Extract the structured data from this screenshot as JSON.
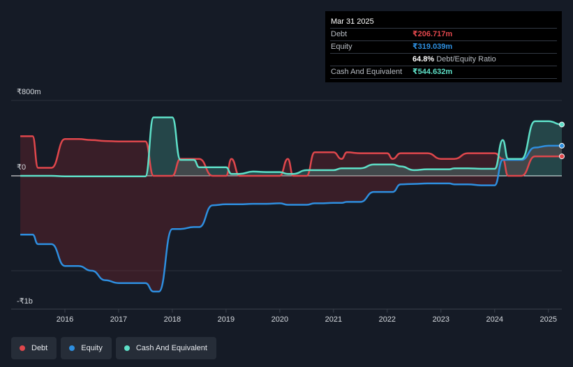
{
  "chart_data": {
    "type": "area",
    "x": [
      2015.17,
      2015.4,
      2015.5,
      2015.75,
      2016.0,
      2016.25,
      2016.5,
      2016.75,
      2017.0,
      2017.25,
      2017.5,
      2017.65,
      2017.75,
      2018.0,
      2018.15,
      2018.4,
      2018.5,
      2018.75,
      2019.0,
      2019.1,
      2019.25,
      2019.5,
      2019.75,
      2020.0,
      2020.15,
      2020.25,
      2020.5,
      2020.65,
      2020.75,
      2021.0,
      2021.15,
      2021.25,
      2021.5,
      2021.75,
      2022.0,
      2022.1,
      2022.25,
      2022.5,
      2022.75,
      2023.0,
      2023.15,
      2023.25,
      2023.5,
      2023.75,
      2024.0,
      2024.15,
      2024.25,
      2024.5,
      2024.75,
      2025.0,
      2025.25
    ],
    "series": [
      {
        "name": "Debt",
        "color": "#e0474c",
        "values": [
          420,
          420,
          85,
          85,
          390,
          390,
          380,
          370,
          365,
          365,
          365,
          0,
          0,
          0,
          180,
          180,
          180,
          0,
          0,
          180,
          0,
          0,
          0,
          0,
          180,
          0,
          0,
          250,
          250,
          250,
          180,
          250,
          240,
          240,
          240,
          180,
          240,
          240,
          240,
          180,
          180,
          180,
          240,
          240,
          240,
          180,
          0,
          0,
          206.7,
          206.7,
          206.7
        ]
      },
      {
        "name": "Equity",
        "color": "#2e8fe0",
        "values": [
          -620,
          -620,
          -720,
          -720,
          -950,
          -950,
          -1000,
          -1100,
          -1130,
          -1130,
          -1130,
          -1220,
          -1220,
          -560,
          -560,
          -540,
          -540,
          -310,
          -300,
          -300,
          -300,
          -295,
          -295,
          -290,
          -305,
          -305,
          -305,
          -290,
          -290,
          -285,
          -285,
          -275,
          -275,
          -170,
          -170,
          -170,
          -90,
          -85,
          -80,
          -80,
          -80,
          -90,
          -90,
          -100,
          -100,
          170,
          170,
          170,
          300,
          319,
          319
        ]
      },
      {
        "name": "Cash And Equivalent",
        "color": "#5ee0c8",
        "values": [
          0,
          0,
          0,
          0,
          -5,
          -5,
          -5,
          -5,
          -5,
          -5,
          -5,
          620,
          620,
          620,
          170,
          170,
          90,
          90,
          90,
          20,
          20,
          45,
          40,
          40,
          20,
          20,
          60,
          60,
          60,
          60,
          80,
          80,
          80,
          120,
          120,
          120,
          100,
          60,
          70,
          70,
          70,
          80,
          80,
          75,
          75,
          380,
          180,
          180,
          580,
          580,
          544.6
        ]
      }
    ],
    "y_ticks": [
      "₹800m",
      "₹0",
      "-₹1b"
    ],
    "x_ticks": [
      "2016",
      "2017",
      "2018",
      "2019",
      "2020",
      "2021",
      "2022",
      "2023",
      "2024",
      "2025"
    ],
    "ylim": [
      -1300,
      800
    ],
    "xlim": [
      2015.0,
      2025.25
    ],
    "grid": true,
    "legend_position": "bottom-left"
  },
  "tooltip": {
    "date": "Mar 31 2025",
    "rows": [
      {
        "label": "Debt",
        "value": "₹206.717m",
        "color": "#e0474c"
      },
      {
        "label": "Equity",
        "value": "₹319.039m",
        "color": "#2e8fe0"
      },
      {
        "label": "",
        "ratio_pct": "64.8%",
        "ratio_label": "Debt/Equity Ratio"
      },
      {
        "label": "Cash And Equivalent",
        "value": "₹544.632m",
        "color": "#5ee0c8"
      }
    ]
  },
  "legend": [
    {
      "label": "Debt",
      "color": "#e0474c"
    },
    {
      "label": "Equity",
      "color": "#2e8fe0"
    },
    {
      "label": "Cash And Equivalent",
      "color": "#5ee0c8"
    }
  ]
}
